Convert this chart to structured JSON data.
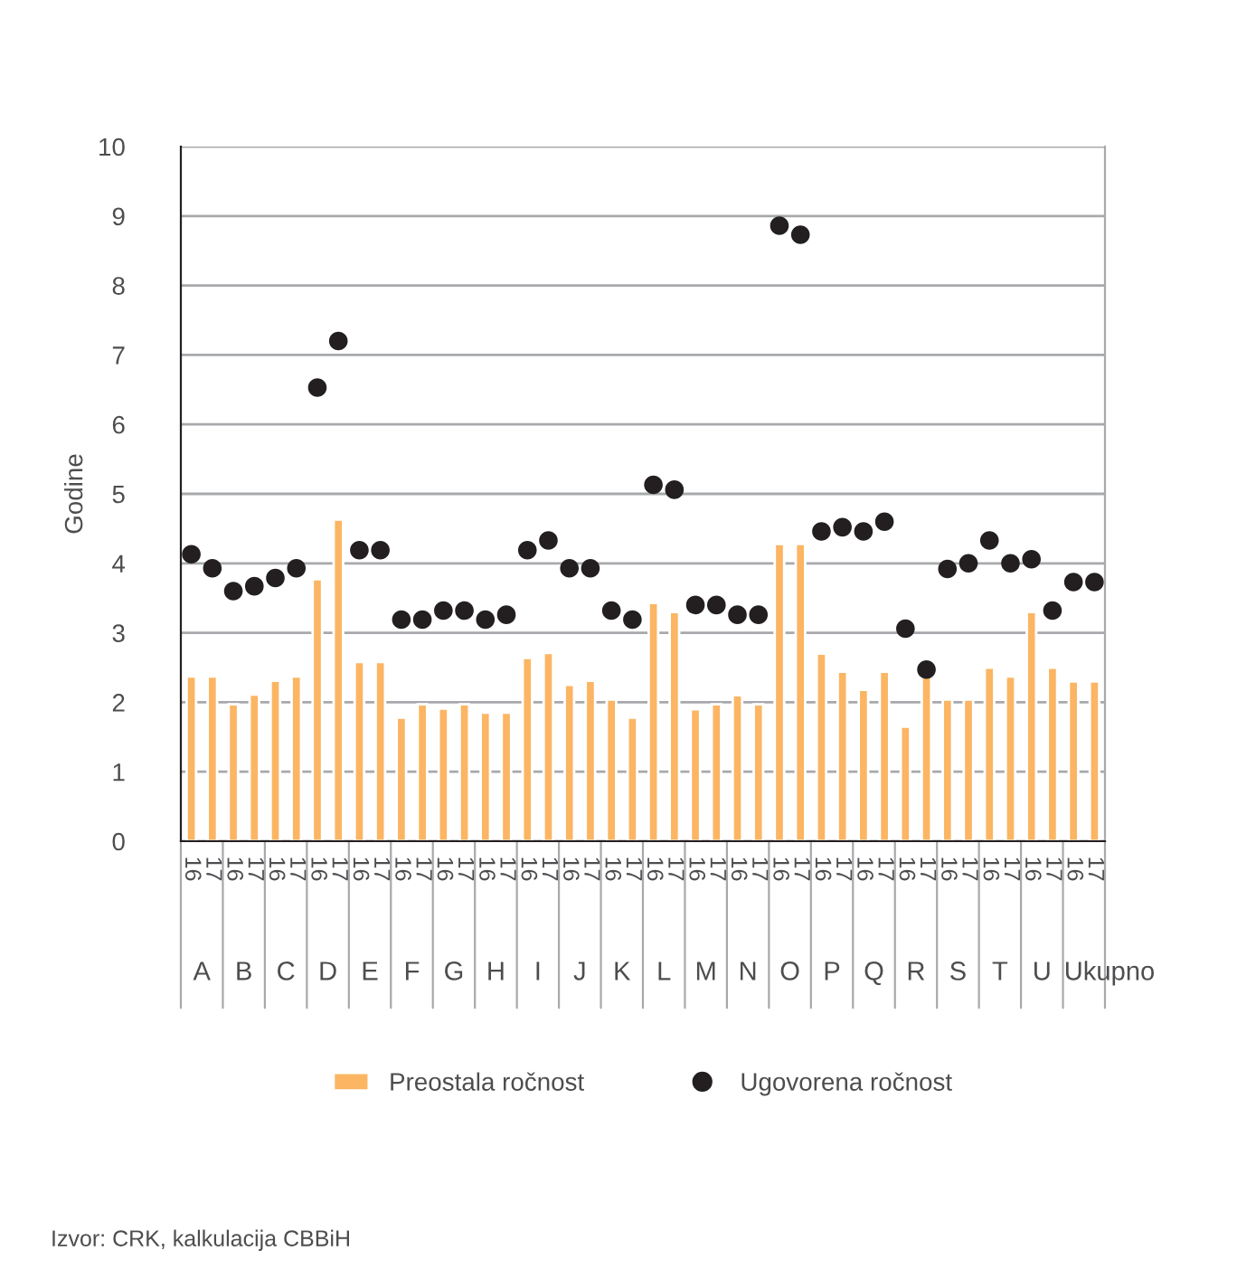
{
  "chart_data": {
    "type": "bar",
    "ylabel": "Godine",
    "categories": [
      "16",
      "17",
      "16",
      "17",
      "16",
      "17",
      "16",
      "17",
      "16",
      "17",
      "16",
      "17",
      "16",
      "17",
      "16",
      "17",
      "16",
      "17",
      "16",
      "17",
      "16",
      "17",
      "16",
      "17",
      "16",
      "17",
      "16",
      "17",
      "16",
      "17",
      "16",
      "17",
      "16",
      "17",
      "16",
      "17",
      "16",
      "17",
      "16",
      "17",
      "16",
      "17",
      "16",
      "17"
    ],
    "series": [
      {
        "name": "Preostala ročnost",
        "color": "#fbb563",
        "values": [
          2.37,
          2.37,
          1.97,
          2.11,
          2.31,
          2.37,
          3.77,
          4.63,
          2.58,
          2.58,
          1.78,
          1.97,
          1.91,
          1.97,
          1.85,
          1.85,
          2.64,
          2.71,
          2.25,
          2.31,
          2.04,
          1.78,
          3.43,
          3.3,
          1.9,
          1.97,
          2.1,
          1.97,
          4.28,
          4.28,
          2.7,
          2.44,
          2.18,
          2.44,
          1.65,
          2.38,
          2.04,
          2.04,
          2.5,
          2.37,
          3.3,
          2.5,
          2.3,
          2.3
        ]
      },
      {
        "name": "Ugovorena ročnost",
        "type": "scatter",
        "color": "#231f20",
        "marker": "circle",
        "values": [
          4.13,
          3.93,
          3.6,
          3.67,
          3.79,
          3.93,
          6.53,
          7.2,
          4.19,
          4.19,
          3.19,
          3.19,
          3.32,
          3.32,
          3.19,
          3.26,
          4.19,
          4.33,
          3.93,
          3.93,
          3.32,
          3.19,
          5.13,
          5.06,
          3.4,
          3.4,
          3.26,
          3.26,
          8.86,
          8.73,
          4.46,
          4.52,
          4.46,
          4.6,
          3.06,
          2.47,
          3.92,
          4.0,
          4.33,
          4.0,
          4.06,
          3.32,
          3.73,
          3.73
        ]
      }
    ],
    "ylim": [
      0,
      10
    ],
    "yticks": [
      0,
      1,
      2,
      3,
      4,
      5,
      6,
      7,
      8,
      9,
      10
    ],
    "grid": "y",
    "legend": "bottom",
    "annotations": [
      "A",
      "B",
      "C",
      "D",
      "E",
      "F",
      "G",
      "H",
      "I",
      "J",
      "K",
      "L",
      "M",
      "N",
      "O",
      "P",
      "Q",
      "R",
      "S",
      "T",
      "U",
      "Ukupno",
      "Izvor: CRK, kalkulacija CBBiH"
    ]
  }
}
